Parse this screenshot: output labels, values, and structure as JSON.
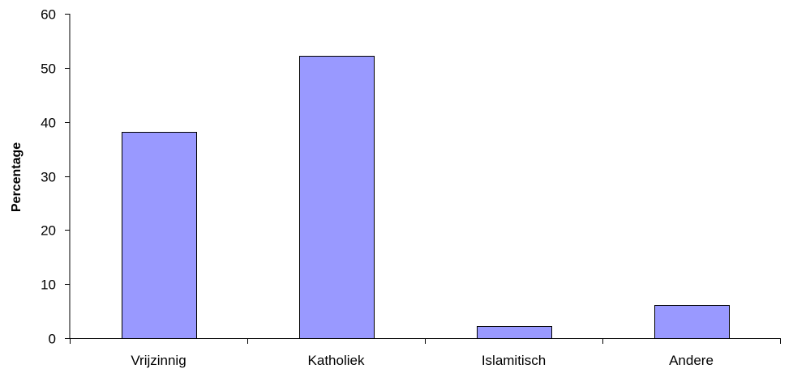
{
  "chart_data": {
    "type": "bar",
    "title": "",
    "xlabel": "",
    "ylabel": "Percentage",
    "categories": [
      "Vrijzinnig",
      "Katholiek",
      "Islamitisch",
      "Andere"
    ],
    "values": [
      38.2,
      52.2,
      2.2,
      6.2
    ],
    "ylim": [
      0,
      60
    ],
    "yticks": [
      0,
      10,
      20,
      30,
      40,
      50,
      60
    ],
    "grid": false,
    "legend": "none",
    "bar_color": "#9999ff"
  }
}
